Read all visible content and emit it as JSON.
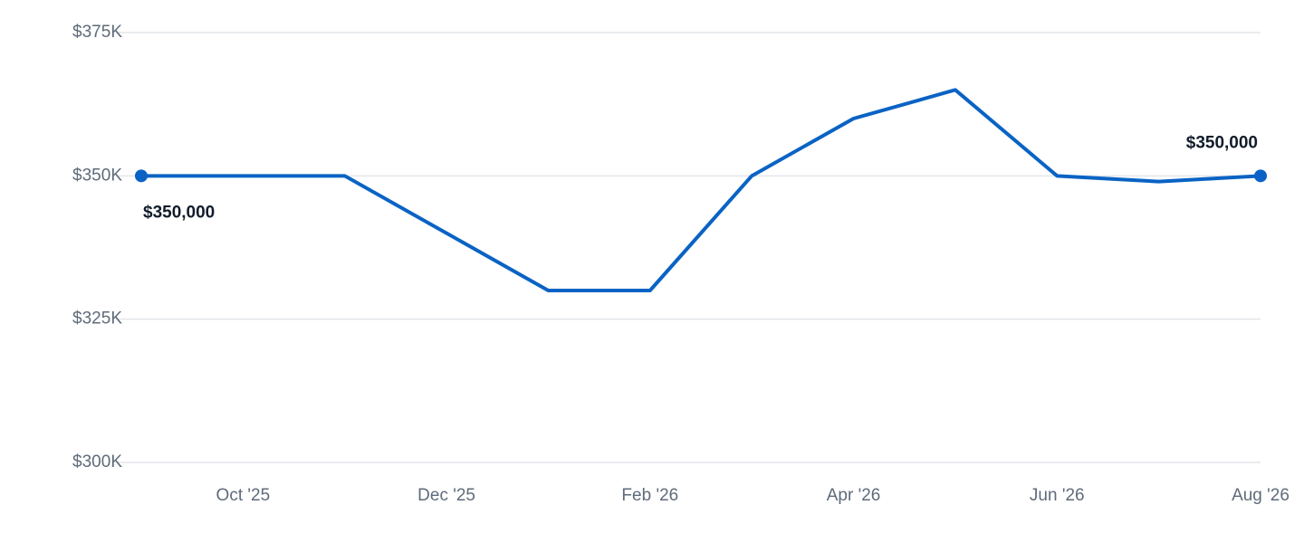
{
  "chart_data": {
    "type": "line",
    "categories": [
      null,
      "Oct '25",
      null,
      "Dec '25",
      null,
      "Feb '26",
      null,
      "Apr '26",
      null,
      "Jun '26",
      null,
      "Aug '26"
    ],
    "series": [
      {
        "color": "#0a63c4",
        "values": [
          350000,
          350000,
          350000,
          340000,
          330000,
          330000,
          350000,
          360000,
          365000,
          350000,
          349000,
          350000
        ],
        "value_labels": [
          "$350,000",
          null,
          null,
          null,
          null,
          null,
          null,
          null,
          null,
          null,
          null,
          "$350,000"
        ]
      }
    ],
    "ylim": [
      300000,
      375000
    ],
    "yticks": [
      {
        "value": 300000,
        "label": "$300K"
      },
      {
        "value": 325000,
        "label": "$325K"
      },
      {
        "value": 350000,
        "label": "$350K"
      },
      {
        "value": 375000,
        "label": "$375K"
      }
    ],
    "grid": true
  }
}
